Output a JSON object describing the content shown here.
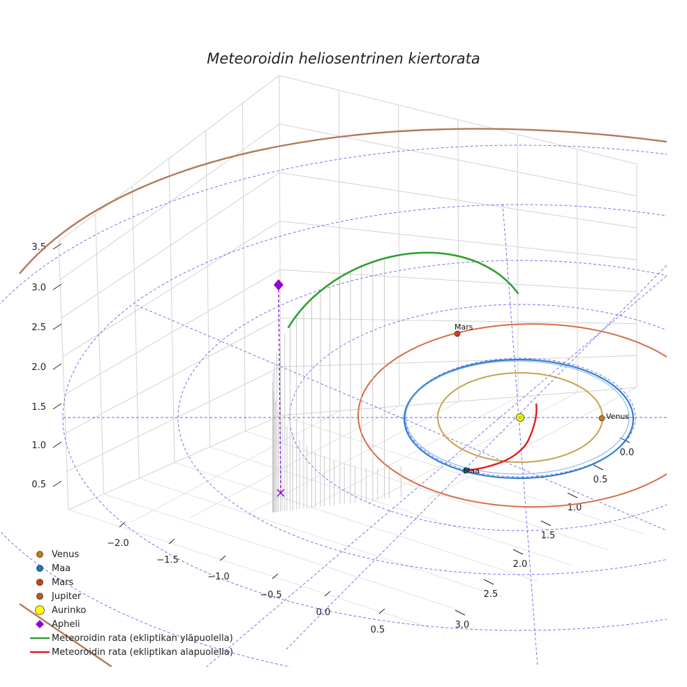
{
  "chart_data": {
    "type": "line3d",
    "title": "Meteoroidin heliosentrinen kiertorata",
    "x_ticks": [
      "−2.0",
      "−1.5",
      "−1.0",
      "−0.5",
      "0.0",
      "0.5"
    ],
    "y_ticks": [
      "0.0",
      "0.5",
      "1.0",
      "1.5",
      "2.0",
      "2.5",
      "3.0"
    ],
    "z_ticks": [
      "0.5",
      "1.0",
      "1.5",
      "2.0",
      "2.5",
      "3.0",
      "3.5"
    ],
    "planets": [
      {
        "name": "Venus",
        "label": "Venus",
        "radius_au": 0.72,
        "color": "#c8a24a",
        "marker": "#c07a20"
      },
      {
        "name": "Maa",
        "label": "Maa",
        "radius_au": 1.0,
        "color": "#2f7fd0",
        "marker": "#1f77b4"
      },
      {
        "name": "Mars",
        "label": "Mars",
        "radius_au": 1.52,
        "color": "#d86a45",
        "marker": "#c8441a"
      },
      {
        "name": "Jupiter",
        "label": "",
        "radius_au": 5.2,
        "color": "#b07a5a",
        "marker": "#b05a30"
      }
    ],
    "sun": {
      "name": "Aurinko",
      "color": "#ffff00"
    },
    "aphelion": {
      "name": "Apheli",
      "color": "#9400d3",
      "height_au": 3.0
    },
    "meteoroid": {
      "above_name": "Meteoroidin rata (ekliptikan yläpuolella)",
      "below_name": "Meteoroidin rata (ekliptikan alapuolella)",
      "above_color": "#2ca02c",
      "below_color": "#e8191a"
    },
    "ecliptic_grid_color": "#4a4ae6"
  },
  "legend": [
    {
      "label": "Venus",
      "kind": "dot",
      "color": "#c07a20"
    },
    {
      "label": "Maa",
      "kind": "dot",
      "color": "#1f77b4"
    },
    {
      "label": "Mars",
      "kind": "dot",
      "color": "#c8441a"
    },
    {
      "label": "Jupiter",
      "kind": "dot",
      "color": "#b05a30"
    },
    {
      "label": "Aurinko",
      "kind": "sun",
      "color": "#ffff00"
    },
    {
      "label": "Apheli",
      "kind": "diamond",
      "color": "#9400d3"
    },
    {
      "label": "Meteoroidin rata (ekliptikan yläpuolella)",
      "kind": "line",
      "color": "#2ca02c"
    },
    {
      "label": "Meteoroidin rata (ekliptikan alapuolella)",
      "kind": "line",
      "color": "#e8191a"
    }
  ]
}
